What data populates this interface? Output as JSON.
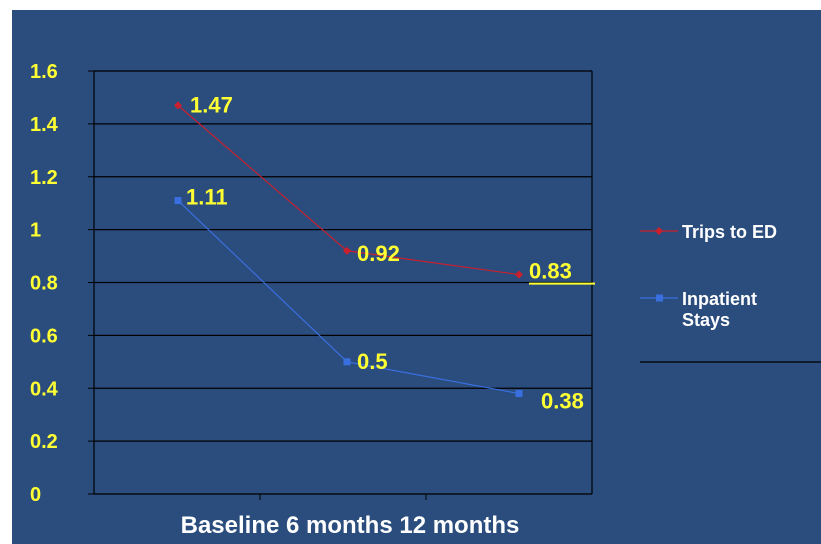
{
  "chart_data": {
    "type": "line",
    "categories": [
      "Baseline",
      "6 months",
      "12 months"
    ],
    "category_label_text": "Baseline 6 months 12 months",
    "ylim": [
      0,
      1.6
    ],
    "yticks": [
      "0",
      "0.2",
      "0.4",
      "0.6",
      "0.8",
      "1",
      "1.2",
      "1.4",
      "1.6"
    ],
    "grid": true,
    "legend_position": "right",
    "series": [
      {
        "name": "Trips to ED",
        "values": [
          1.47,
          0.92,
          0.83
        ],
        "labels": [
          "1.47",
          "0.92",
          "0.83"
        ],
        "color": "#cc1f2e",
        "marker": "diamond"
      },
      {
        "name": "Inpatient Stays",
        "legend_lines": [
          "Inpatient",
          "Stays"
        ],
        "values": [
          1.11,
          0.5,
          0.38
        ],
        "labels": [
          "1.11",
          "0.5",
          "0.38"
        ],
        "color": "#3a6fe0",
        "marker": "square"
      }
    ],
    "colors": {
      "background": "#2a4d7d",
      "tick_labels": "#ffff33",
      "data_labels": "#ffff33",
      "category_labels": "#ffffff",
      "legend_text": "#ffffff",
      "gridlines": "#000000"
    }
  }
}
